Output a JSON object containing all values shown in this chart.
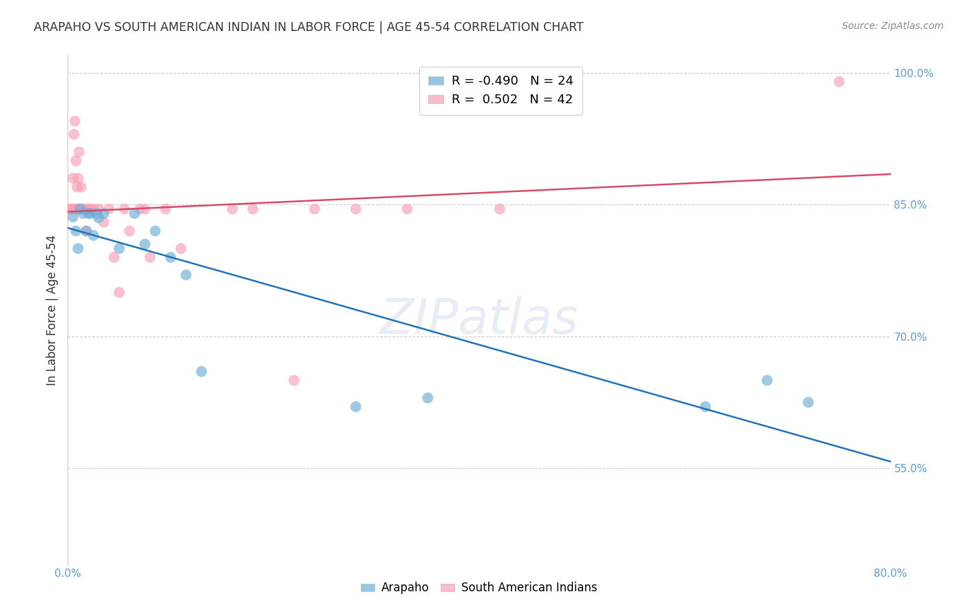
{
  "title": "ARAPAHO VS SOUTH AMERICAN INDIAN IN LABOR FORCE | AGE 45-54 CORRELATION CHART",
  "source": "Source: ZipAtlas.com",
  "ylabel": "In Labor Force | Age 45-54",
  "xlim": [
    0.0,
    0.8
  ],
  "ylim": [
    0.44,
    1.02
  ],
  "yticks": [
    0.55,
    0.7,
    0.85,
    1.0
  ],
  "ytick_labels": [
    "55.0%",
    "70.0%",
    "85.0%",
    "100.0%"
  ],
  "xticks": [
    0.0,
    0.1,
    0.2,
    0.3,
    0.4,
    0.5,
    0.6,
    0.7,
    0.8
  ],
  "xtick_labels": [
    "0.0%",
    "",
    "",
    "",
    "",
    "",
    "",
    "",
    "80.0%"
  ],
  "arapaho_R": "-0.490",
  "arapaho_N": "24",
  "south_american_R": "0.502",
  "south_american_N": "42",
  "arapaho_color": "#6baed6",
  "south_american_color": "#fa9fb5",
  "arapaho_line_color": "#2171b5",
  "south_american_line_color": "#d44a6a",
  "background_color": "#ffffff",
  "watermark": "ZIPatlas",
  "arapaho_x": [
    0.005,
    0.008,
    0.01,
    0.012,
    0.015,
    0.018,
    0.02,
    0.022,
    0.025,
    0.028,
    0.03,
    0.035,
    0.05,
    0.065,
    0.075,
    0.085,
    0.1,
    0.115,
    0.13,
    0.28,
    0.35,
    0.62,
    0.68,
    0.72
  ],
  "arapaho_y": [
    0.836,
    0.82,
    0.8,
    0.845,
    0.84,
    0.82,
    0.84,
    0.84,
    0.815,
    0.84,
    0.835,
    0.84,
    0.8,
    0.84,
    0.805,
    0.82,
    0.79,
    0.77,
    0.66,
    0.62,
    0.63,
    0.62,
    0.65,
    0.625
  ],
  "south_american_x": [
    0.003,
    0.004,
    0.005,
    0.005,
    0.006,
    0.007,
    0.008,
    0.008,
    0.009,
    0.01,
    0.01,
    0.01,
    0.011,
    0.012,
    0.013,
    0.014,
    0.015,
    0.016,
    0.018,
    0.02,
    0.022,
    0.025,
    0.03,
    0.035,
    0.04,
    0.045,
    0.05,
    0.055,
    0.06,
    0.07,
    0.075,
    0.08,
    0.095,
    0.11,
    0.16,
    0.18,
    0.22,
    0.24,
    0.28,
    0.33,
    0.42,
    0.75
  ],
  "south_american_y": [
    0.845,
    0.845,
    0.88,
    0.845,
    0.93,
    0.945,
    0.845,
    0.9,
    0.87,
    0.845,
    0.845,
    0.88,
    0.91,
    0.845,
    0.87,
    0.845,
    0.845,
    0.845,
    0.82,
    0.845,
    0.845,
    0.845,
    0.845,
    0.83,
    0.845,
    0.79,
    0.75,
    0.845,
    0.82,
    0.845,
    0.845,
    0.79,
    0.845,
    0.8,
    0.845,
    0.845,
    0.65,
    0.845,
    0.845,
    0.845,
    0.845,
    0.99
  ]
}
